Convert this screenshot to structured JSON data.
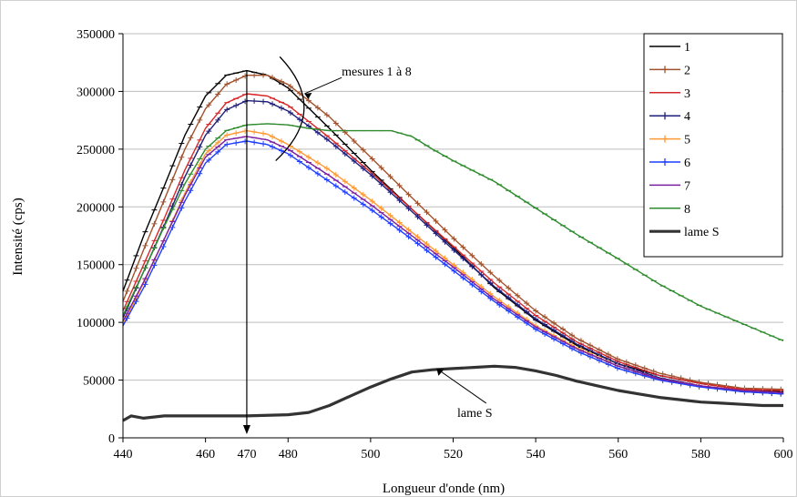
{
  "chart_data": {
    "type": "line",
    "title": "",
    "xlabel": "Longueur d'onde (nm)",
    "ylabel": "Intensité (cps)",
    "xlim": [
      440,
      600
    ],
    "ylim": [
      0,
      350000
    ],
    "xticks": [
      440,
      460,
      480,
      500,
      520,
      540,
      560,
      580,
      600
    ],
    "yticks": [
      0,
      50000,
      100000,
      150000,
      200000,
      250000,
      300000,
      350000
    ],
    "grid": "horizontal",
    "legend_position": "top-right",
    "annotations": {
      "measures_label": "mesures 1 à 8",
      "lame_label": "lame S",
      "marker_label": "470",
      "marker_x": 470
    },
    "series": [
      {
        "name": "1",
        "color": "#000000",
        "marker": "dash",
        "points": [
          [
            440,
            127000
          ],
          [
            445,
            175000
          ],
          [
            450,
            218000
          ],
          [
            455,
            262000
          ],
          [
            460,
            296000
          ],
          [
            465,
            314000
          ],
          [
            470,
            318000
          ],
          [
            475,
            314000
          ],
          [
            480,
            303000
          ],
          [
            490,
            268000
          ],
          [
            500,
            232000
          ],
          [
            510,
            198000
          ],
          [
            520,
            165000
          ],
          [
            530,
            130000
          ],
          [
            540,
            102000
          ],
          [
            550,
            80000
          ],
          [
            560,
            64000
          ],
          [
            570,
            54000
          ],
          [
            580,
            47000
          ],
          [
            590,
            42000
          ],
          [
            600,
            40000
          ]
        ]
      },
      {
        "name": "2",
        "color": "#a0522d",
        "marker": "plus",
        "points": [
          [
            440,
            118000
          ],
          [
            445,
            163000
          ],
          [
            450,
            206000
          ],
          [
            455,
            250000
          ],
          [
            460,
            285000
          ],
          [
            465,
            306000
          ],
          [
            470,
            314000
          ],
          [
            475,
            314000
          ],
          [
            480,
            306000
          ],
          [
            490,
            278000
          ],
          [
            500,
            243000
          ],
          [
            510,
            208000
          ],
          [
            520,
            173000
          ],
          [
            530,
            140000
          ],
          [
            540,
            110000
          ],
          [
            550,
            86000
          ],
          [
            560,
            68000
          ],
          [
            570,
            56000
          ],
          [
            580,
            48000
          ],
          [
            590,
            43000
          ],
          [
            600,
            42000
          ]
        ]
      },
      {
        "name": "3",
        "color": "#d62728",
        "marker": "dash",
        "points": [
          [
            440,
            110000
          ],
          [
            445,
            150000
          ],
          [
            450,
            190000
          ],
          [
            455,
            232000
          ],
          [
            460,
            268000
          ],
          [
            465,
            290000
          ],
          [
            470,
            298000
          ],
          [
            475,
            296000
          ],
          [
            480,
            288000
          ],
          [
            490,
            260000
          ],
          [
            500,
            230000
          ],
          [
            510,
            198000
          ],
          [
            520,
            166000
          ],
          [
            530,
            134000
          ],
          [
            540,
            106000
          ],
          [
            550,
            83000
          ],
          [
            560,
            66000
          ],
          [
            570,
            54000
          ],
          [
            580,
            47000
          ],
          [
            590,
            42000
          ],
          [
            600,
            41000
          ]
        ]
      },
      {
        "name": "4",
        "color": "#1f1f7a",
        "marker": "plus",
        "points": [
          [
            440,
            104000
          ],
          [
            445,
            144000
          ],
          [
            450,
            184000
          ],
          [
            455,
            226000
          ],
          [
            460,
            262000
          ],
          [
            465,
            284000
          ],
          [
            470,
            292000
          ],
          [
            475,
            291000
          ],
          [
            480,
            283000
          ],
          [
            490,
            257000
          ],
          [
            500,
            228000
          ],
          [
            510,
            196000
          ],
          [
            520,
            163000
          ],
          [
            530,
            131000
          ],
          [
            540,
            103000
          ],
          [
            550,
            81000
          ],
          [
            560,
            64000
          ],
          [
            570,
            52000
          ],
          [
            580,
            45000
          ],
          [
            590,
            40000
          ],
          [
            600,
            38000
          ]
        ]
      },
      {
        "name": "5",
        "color": "#ff9933",
        "marker": "plus",
        "points": [
          [
            440,
            98000
          ],
          [
            445,
            134000
          ],
          [
            450,
            172000
          ],
          [
            455,
            212000
          ],
          [
            460,
            246000
          ],
          [
            465,
            262000
          ],
          [
            470,
            266000
          ],
          [
            475,
            263000
          ],
          [
            480,
            254000
          ],
          [
            490,
            232000
          ],
          [
            500,
            206000
          ],
          [
            510,
            178000
          ],
          [
            520,
            150000
          ],
          [
            530,
            122000
          ],
          [
            540,
            97000
          ],
          [
            550,
            78000
          ],
          [
            560,
            62000
          ],
          [
            570,
            51000
          ],
          [
            580,
            45000
          ],
          [
            590,
            41000
          ],
          [
            600,
            39000
          ]
        ]
      },
      {
        "name": "6",
        "color": "#1f3fff",
        "marker": "plus",
        "points": [
          [
            440,
            97000
          ],
          [
            445,
            130000
          ],
          [
            450,
            167000
          ],
          [
            455,
            205000
          ],
          [
            460,
            238000
          ],
          [
            465,
            254000
          ],
          [
            470,
            257000
          ],
          [
            475,
            254000
          ],
          [
            480,
            246000
          ],
          [
            490,
            222000
          ],
          [
            500,
            198000
          ],
          [
            510,
            172000
          ],
          [
            520,
            145000
          ],
          [
            530,
            118000
          ],
          [
            540,
            94000
          ],
          [
            550,
            75000
          ],
          [
            560,
            60000
          ],
          [
            570,
            50000
          ],
          [
            580,
            44000
          ],
          [
            590,
            40000
          ],
          [
            600,
            38000
          ]
        ]
      },
      {
        "name": "7",
        "color": "#7a1fa2",
        "marker": "dash",
        "points": [
          [
            440,
            101000
          ],
          [
            445,
            135000
          ],
          [
            450,
            172000
          ],
          [
            455,
            210000
          ],
          [
            460,
            243000
          ],
          [
            465,
            258000
          ],
          [
            470,
            261000
          ],
          [
            475,
            258000
          ],
          [
            480,
            250000
          ],
          [
            490,
            227000
          ],
          [
            500,
            202000
          ],
          [
            510,
            175000
          ],
          [
            520,
            148000
          ],
          [
            530,
            120000
          ],
          [
            540,
            96000
          ],
          [
            550,
            77000
          ],
          [
            560,
            62000
          ],
          [
            570,
            51000
          ],
          [
            580,
            45000
          ],
          [
            590,
            41000
          ],
          [
            600,
            39000
          ]
        ]
      },
      {
        "name": "8",
        "color": "#2e8b2e",
        "marker": "dash",
        "points": [
          [
            440,
            106000
          ],
          [
            445,
            144000
          ],
          [
            450,
            183000
          ],
          [
            455,
            220000
          ],
          [
            460,
            250000
          ],
          [
            465,
            266000
          ],
          [
            470,
            271000
          ],
          [
            475,
            272000
          ],
          [
            480,
            271000
          ],
          [
            485,
            268000
          ],
          [
            490,
            266000
          ],
          [
            495,
            266000
          ],
          [
            500,
            266000
          ],
          [
            505,
            266000
          ],
          [
            510,
            261000
          ],
          [
            515,
            250000
          ],
          [
            520,
            240000
          ],
          [
            530,
            222000
          ],
          [
            540,
            199000
          ],
          [
            550,
            176000
          ],
          [
            560,
            155000
          ],
          [
            570,
            133000
          ],
          [
            580,
            114000
          ],
          [
            590,
            99000
          ],
          [
            600,
            84000
          ]
        ]
      },
      {
        "name": "lame S",
        "color": "#333333",
        "marker": "none",
        "width": 3.2,
        "points": [
          [
            440,
            15000
          ],
          [
            442,
            19000
          ],
          [
            445,
            17000
          ],
          [
            450,
            19000
          ],
          [
            460,
            19000
          ],
          [
            470,
            19000
          ],
          [
            480,
            20000
          ],
          [
            485,
            22000
          ],
          [
            490,
            28000
          ],
          [
            495,
            36000
          ],
          [
            500,
            44000
          ],
          [
            505,
            51000
          ],
          [
            510,
            57000
          ],
          [
            515,
            59000
          ],
          [
            520,
            60000
          ],
          [
            525,
            61000
          ],
          [
            530,
            62000
          ],
          [
            535,
            61000
          ],
          [
            540,
            58000
          ],
          [
            545,
            54000
          ],
          [
            550,
            49000
          ],
          [
            555,
            45000
          ],
          [
            560,
            41000
          ],
          [
            565,
            38000
          ],
          [
            570,
            35000
          ],
          [
            575,
            33000
          ],
          [
            580,
            31000
          ],
          [
            585,
            30000
          ],
          [
            590,
            29000
          ],
          [
            595,
            28000
          ],
          [
            600,
            28000
          ]
        ]
      }
    ]
  }
}
